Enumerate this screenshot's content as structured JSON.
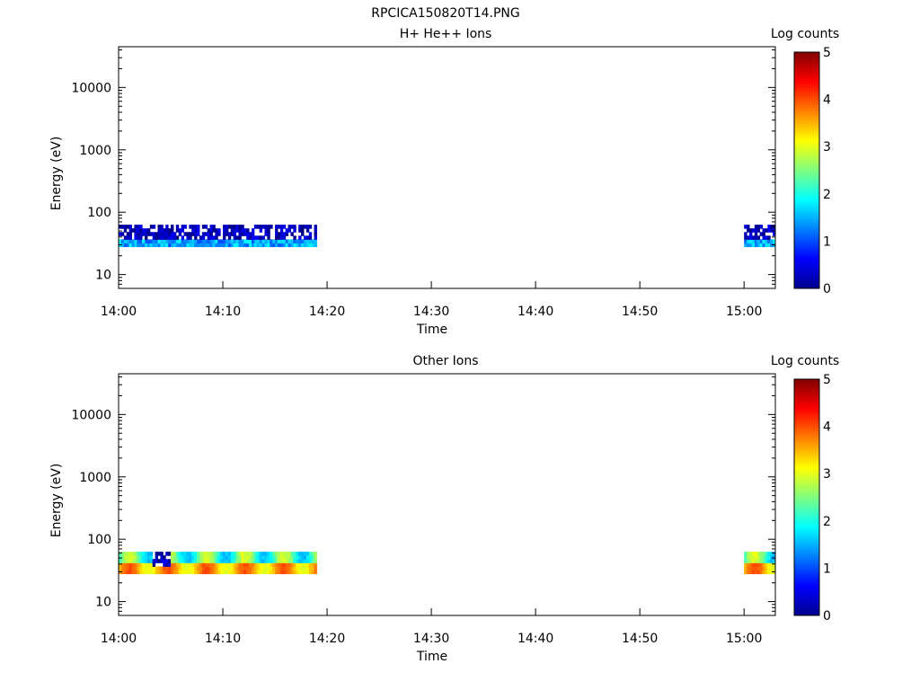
{
  "figure_title": "RPCICA150820T14.PNG",
  "chart_data": [
    {
      "type": "heatmap",
      "title": "H+ He++ Ions",
      "xlabel": "Time",
      "ylabel": "Energy (eV)",
      "x_tick_labels": [
        "14:00",
        "14:10",
        "14:20",
        "14:30",
        "14:40",
        "14:50",
        "15:00"
      ],
      "x_range": [
        "14:00",
        "15:03"
      ],
      "y_scale": "log",
      "y_tick_labels": [
        "10",
        "100",
        "1000",
        "10000"
      ],
      "ylim": [
        6,
        45000
      ],
      "colorbar": {
        "label": "Log counts",
        "range": [
          0,
          5
        ],
        "tick_labels": [
          "0",
          "1",
          "2",
          "3",
          "4",
          "5"
        ]
      },
      "energy_band": [
        28,
        63
      ],
      "data_intervals": [
        [
          "14:00",
          "14:19"
        ],
        [
          "15:00",
          "15:03"
        ]
      ],
      "approx_log_counts": {
        "upper_band": "0-0.5, many empty bins",
        "lower_band": "1-1.8"
      }
    },
    {
      "type": "heatmap",
      "title": "Other Ions",
      "xlabel": "Time",
      "ylabel": "Energy (eV)",
      "x_tick_labels": [
        "14:00",
        "14:10",
        "14:20",
        "14:30",
        "14:40",
        "14:50",
        "15:00"
      ],
      "x_range": [
        "14:00",
        "15:03"
      ],
      "y_scale": "log",
      "y_tick_labels": [
        "10",
        "100",
        "1000",
        "10000"
      ],
      "ylim": [
        6,
        45000
      ],
      "colorbar": {
        "label": "Log counts",
        "range": [
          0,
          5
        ],
        "tick_labels": [
          "0",
          "1",
          "2",
          "3",
          "4",
          "5"
        ]
      },
      "energy_band": [
        28,
        63
      ],
      "data_intervals": [
        [
          "14:00",
          "14:19"
        ],
        [
          "15:00",
          "15:03"
        ]
      ],
      "approx_log_counts": {
        "upper_band": "1.5-3",
        "lower_band": "3-4"
      }
    }
  ]
}
